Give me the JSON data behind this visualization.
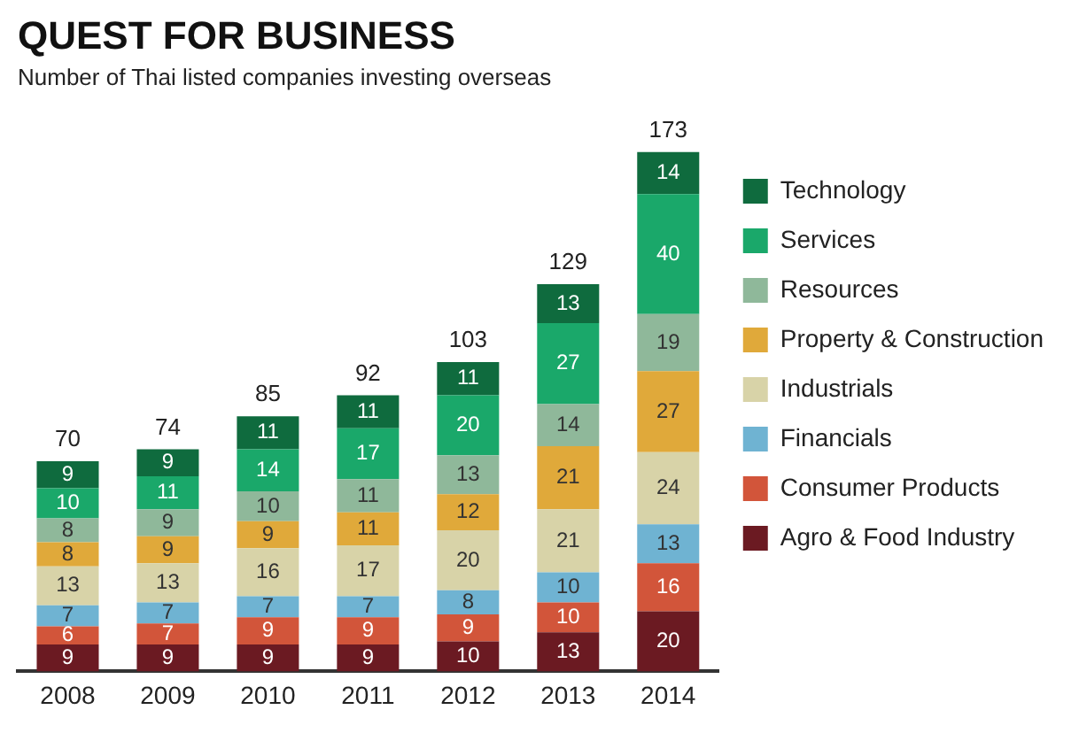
{
  "chart_data": {
    "type": "bar",
    "title": "QUEST FOR BUSINESS",
    "subtitle": "Number of Thai listed companies investing overseas",
    "categories": [
      "2008",
      "2009",
      "2010",
      "2011",
      "2012",
      "2013",
      "2014"
    ],
    "stacked": true,
    "data_labels": true,
    "legend": "right",
    "grid": false,
    "totals": [
      "70",
      "74",
      "85",
      "92",
      "103",
      "129",
      "173"
    ],
    "series": [
      {
        "name": "Agro & Food Industry",
        "color": "#6b1a22",
        "values": [
          9,
          9,
          9,
          9,
          10,
          13,
          20
        ]
      },
      {
        "name": "Consumer Products",
        "color": "#d2553a",
        "values": [
          6,
          7,
          9,
          9,
          9,
          10,
          16
        ]
      },
      {
        "name": "Financials",
        "color": "#6fb3d2",
        "values": [
          7,
          7,
          7,
          7,
          8,
          10,
          13
        ]
      },
      {
        "name": "Industrials",
        "color": "#d8d3a8",
        "values": [
          13,
          13,
          16,
          17,
          20,
          21,
          24
        ]
      },
      {
        "name": "Property & Construction",
        "color": "#e0a93a",
        "values": [
          8,
          9,
          9,
          11,
          12,
          21,
          27
        ]
      },
      {
        "name": "Resources",
        "color": "#8fb89a",
        "values": [
          8,
          9,
          10,
          11,
          13,
          14,
          19
        ]
      },
      {
        "name": "Services",
        "color": "#1aa86a",
        "values": [
          10,
          11,
          14,
          17,
          20,
          27,
          40
        ]
      },
      {
        "name": "Technology",
        "color": "#0f6b3e",
        "values": [
          9,
          9,
          11,
          11,
          11,
          13,
          14
        ]
      }
    ]
  }
}
